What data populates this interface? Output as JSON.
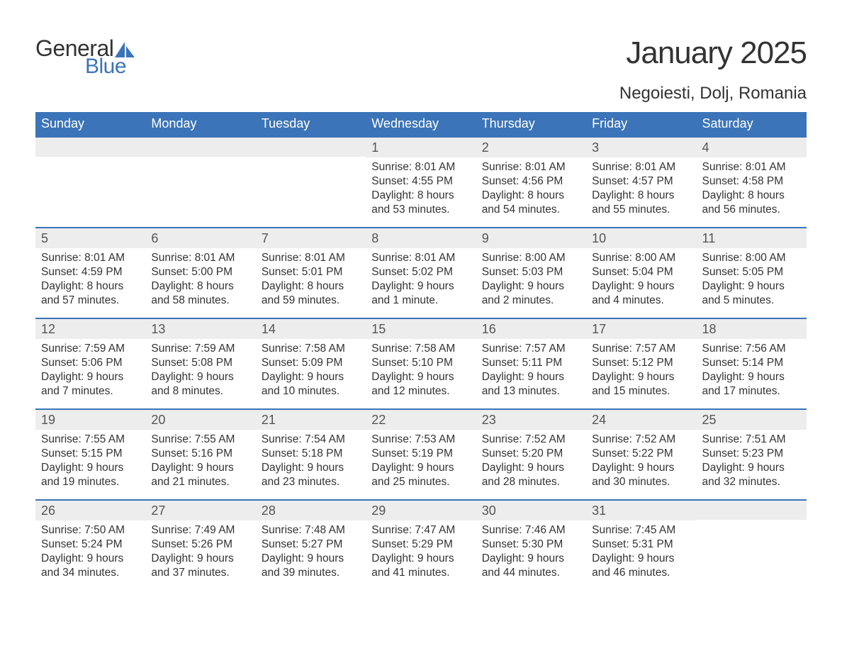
{
  "logo": {
    "text1": "General",
    "text2": "Blue",
    "sail_color": "#3b74b8"
  },
  "title": "January 2025",
  "location": "Negoiesti, Dolj, Romania",
  "colors": {
    "header_bg": "#3b74b8",
    "header_text": "#ffffff",
    "daynum_bg": "#ededed",
    "border": "#3b74b8",
    "text": "#333333",
    "page_bg": "#ffffff"
  },
  "fonts": {
    "title_size": 44,
    "location_size": 24,
    "weekday_size": 18,
    "daynum_size": 18,
    "body_size": 15.5
  },
  "weekdays": [
    "Sunday",
    "Monday",
    "Tuesday",
    "Wednesday",
    "Thursday",
    "Friday",
    "Saturday"
  ],
  "weeks": [
    [
      {
        "n": "",
        "sunrise": "",
        "sunset": "",
        "daylight": ""
      },
      {
        "n": "",
        "sunrise": "",
        "sunset": "",
        "daylight": ""
      },
      {
        "n": "",
        "sunrise": "",
        "sunset": "",
        "daylight": ""
      },
      {
        "n": "1",
        "sunrise": "Sunrise: 8:01 AM",
        "sunset": "Sunset: 4:55 PM",
        "daylight": "Daylight: 8 hours and 53 minutes."
      },
      {
        "n": "2",
        "sunrise": "Sunrise: 8:01 AM",
        "sunset": "Sunset: 4:56 PM",
        "daylight": "Daylight: 8 hours and 54 minutes."
      },
      {
        "n": "3",
        "sunrise": "Sunrise: 8:01 AM",
        "sunset": "Sunset: 4:57 PM",
        "daylight": "Daylight: 8 hours and 55 minutes."
      },
      {
        "n": "4",
        "sunrise": "Sunrise: 8:01 AM",
        "sunset": "Sunset: 4:58 PM",
        "daylight": "Daylight: 8 hours and 56 minutes."
      }
    ],
    [
      {
        "n": "5",
        "sunrise": "Sunrise: 8:01 AM",
        "sunset": "Sunset: 4:59 PM",
        "daylight": "Daylight: 8 hours and 57 minutes."
      },
      {
        "n": "6",
        "sunrise": "Sunrise: 8:01 AM",
        "sunset": "Sunset: 5:00 PM",
        "daylight": "Daylight: 8 hours and 58 minutes."
      },
      {
        "n": "7",
        "sunrise": "Sunrise: 8:01 AM",
        "sunset": "Sunset: 5:01 PM",
        "daylight": "Daylight: 8 hours and 59 minutes."
      },
      {
        "n": "8",
        "sunrise": "Sunrise: 8:01 AM",
        "sunset": "Sunset: 5:02 PM",
        "daylight": "Daylight: 9 hours and 1 minute."
      },
      {
        "n": "9",
        "sunrise": "Sunrise: 8:00 AM",
        "sunset": "Sunset: 5:03 PM",
        "daylight": "Daylight: 9 hours and 2 minutes."
      },
      {
        "n": "10",
        "sunrise": "Sunrise: 8:00 AM",
        "sunset": "Sunset: 5:04 PM",
        "daylight": "Daylight: 9 hours and 4 minutes."
      },
      {
        "n": "11",
        "sunrise": "Sunrise: 8:00 AM",
        "sunset": "Sunset: 5:05 PM",
        "daylight": "Daylight: 9 hours and 5 minutes."
      }
    ],
    [
      {
        "n": "12",
        "sunrise": "Sunrise: 7:59 AM",
        "sunset": "Sunset: 5:06 PM",
        "daylight": "Daylight: 9 hours and 7 minutes."
      },
      {
        "n": "13",
        "sunrise": "Sunrise: 7:59 AM",
        "sunset": "Sunset: 5:08 PM",
        "daylight": "Daylight: 9 hours and 8 minutes."
      },
      {
        "n": "14",
        "sunrise": "Sunrise: 7:58 AM",
        "sunset": "Sunset: 5:09 PM",
        "daylight": "Daylight: 9 hours and 10 minutes."
      },
      {
        "n": "15",
        "sunrise": "Sunrise: 7:58 AM",
        "sunset": "Sunset: 5:10 PM",
        "daylight": "Daylight: 9 hours and 12 minutes."
      },
      {
        "n": "16",
        "sunrise": "Sunrise: 7:57 AM",
        "sunset": "Sunset: 5:11 PM",
        "daylight": "Daylight: 9 hours and 13 minutes."
      },
      {
        "n": "17",
        "sunrise": "Sunrise: 7:57 AM",
        "sunset": "Sunset: 5:12 PM",
        "daylight": "Daylight: 9 hours and 15 minutes."
      },
      {
        "n": "18",
        "sunrise": "Sunrise: 7:56 AM",
        "sunset": "Sunset: 5:14 PM",
        "daylight": "Daylight: 9 hours and 17 minutes."
      }
    ],
    [
      {
        "n": "19",
        "sunrise": "Sunrise: 7:55 AM",
        "sunset": "Sunset: 5:15 PM",
        "daylight": "Daylight: 9 hours and 19 minutes."
      },
      {
        "n": "20",
        "sunrise": "Sunrise: 7:55 AM",
        "sunset": "Sunset: 5:16 PM",
        "daylight": "Daylight: 9 hours and 21 minutes."
      },
      {
        "n": "21",
        "sunrise": "Sunrise: 7:54 AM",
        "sunset": "Sunset: 5:18 PM",
        "daylight": "Daylight: 9 hours and 23 minutes."
      },
      {
        "n": "22",
        "sunrise": "Sunrise: 7:53 AM",
        "sunset": "Sunset: 5:19 PM",
        "daylight": "Daylight: 9 hours and 25 minutes."
      },
      {
        "n": "23",
        "sunrise": "Sunrise: 7:52 AM",
        "sunset": "Sunset: 5:20 PM",
        "daylight": "Daylight: 9 hours and 28 minutes."
      },
      {
        "n": "24",
        "sunrise": "Sunrise: 7:52 AM",
        "sunset": "Sunset: 5:22 PM",
        "daylight": "Daylight: 9 hours and 30 minutes."
      },
      {
        "n": "25",
        "sunrise": "Sunrise: 7:51 AM",
        "sunset": "Sunset: 5:23 PM",
        "daylight": "Daylight: 9 hours and 32 minutes."
      }
    ],
    [
      {
        "n": "26",
        "sunrise": "Sunrise: 7:50 AM",
        "sunset": "Sunset: 5:24 PM",
        "daylight": "Daylight: 9 hours and 34 minutes."
      },
      {
        "n": "27",
        "sunrise": "Sunrise: 7:49 AM",
        "sunset": "Sunset: 5:26 PM",
        "daylight": "Daylight: 9 hours and 37 minutes."
      },
      {
        "n": "28",
        "sunrise": "Sunrise: 7:48 AM",
        "sunset": "Sunset: 5:27 PM",
        "daylight": "Daylight: 9 hours and 39 minutes."
      },
      {
        "n": "29",
        "sunrise": "Sunrise: 7:47 AM",
        "sunset": "Sunset: 5:29 PM",
        "daylight": "Daylight: 9 hours and 41 minutes."
      },
      {
        "n": "30",
        "sunrise": "Sunrise: 7:46 AM",
        "sunset": "Sunset: 5:30 PM",
        "daylight": "Daylight: 9 hours and 44 minutes."
      },
      {
        "n": "31",
        "sunrise": "Sunrise: 7:45 AM",
        "sunset": "Sunset: 5:31 PM",
        "daylight": "Daylight: 9 hours and 46 minutes."
      },
      {
        "n": "",
        "sunrise": "",
        "sunset": "",
        "daylight": ""
      }
    ]
  ]
}
